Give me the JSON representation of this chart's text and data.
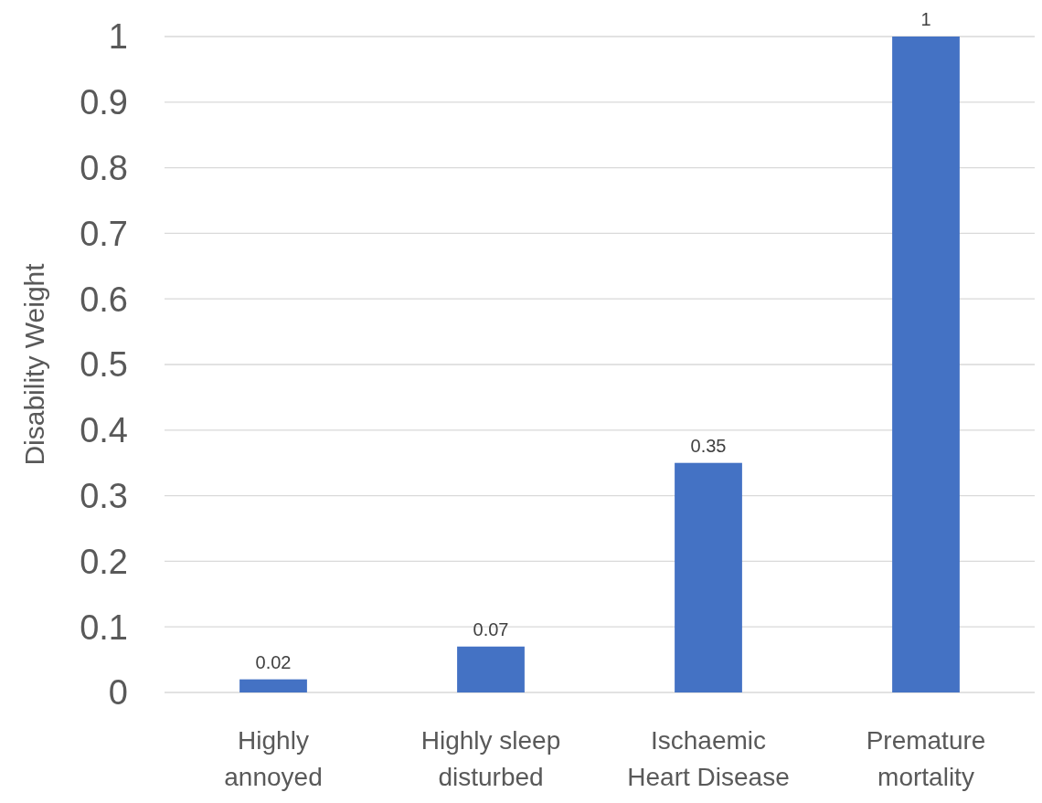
{
  "chart_data": {
    "type": "bar",
    "ylabel": "Disability Weight",
    "categories": [
      "Highly annoyed",
      "Highly sleep disturbed",
      "Ischaemic Heart Disease",
      "Premature mortality"
    ],
    "values": [
      0.02,
      0.07,
      0.35,
      1
    ],
    "color": "#4472c4",
    "ylim": [
      0,
      1
    ],
    "yticks": [
      0,
      0.1,
      0.2,
      0.3,
      0.4,
      0.5,
      0.6,
      0.7,
      0.8,
      0.9,
      1
    ],
    "grid": "y",
    "data_labels": true
  }
}
